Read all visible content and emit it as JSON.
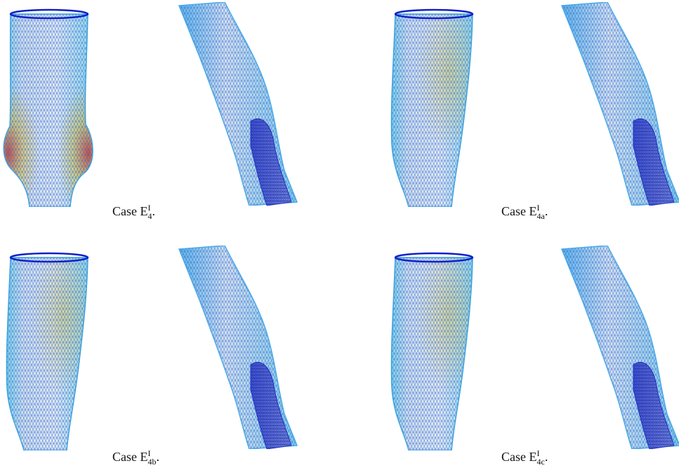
{
  "panels": [
    {
      "caption": {
        "text": "Case E",
        "sup": "I",
        "sub": "4",
        "end": "."
      }
    },
    {
      "caption": {
        "text": "Case E",
        "sup": "I",
        "sub": "4a",
        "end": "."
      }
    },
    {
      "caption": {
        "text": "Case E",
        "sup": "I",
        "sub": "4b",
        "end": "."
      }
    },
    {
      "caption": {
        "text": "Case E",
        "sup": "I",
        "sub": "4c",
        "end": "."
      }
    }
  ]
}
